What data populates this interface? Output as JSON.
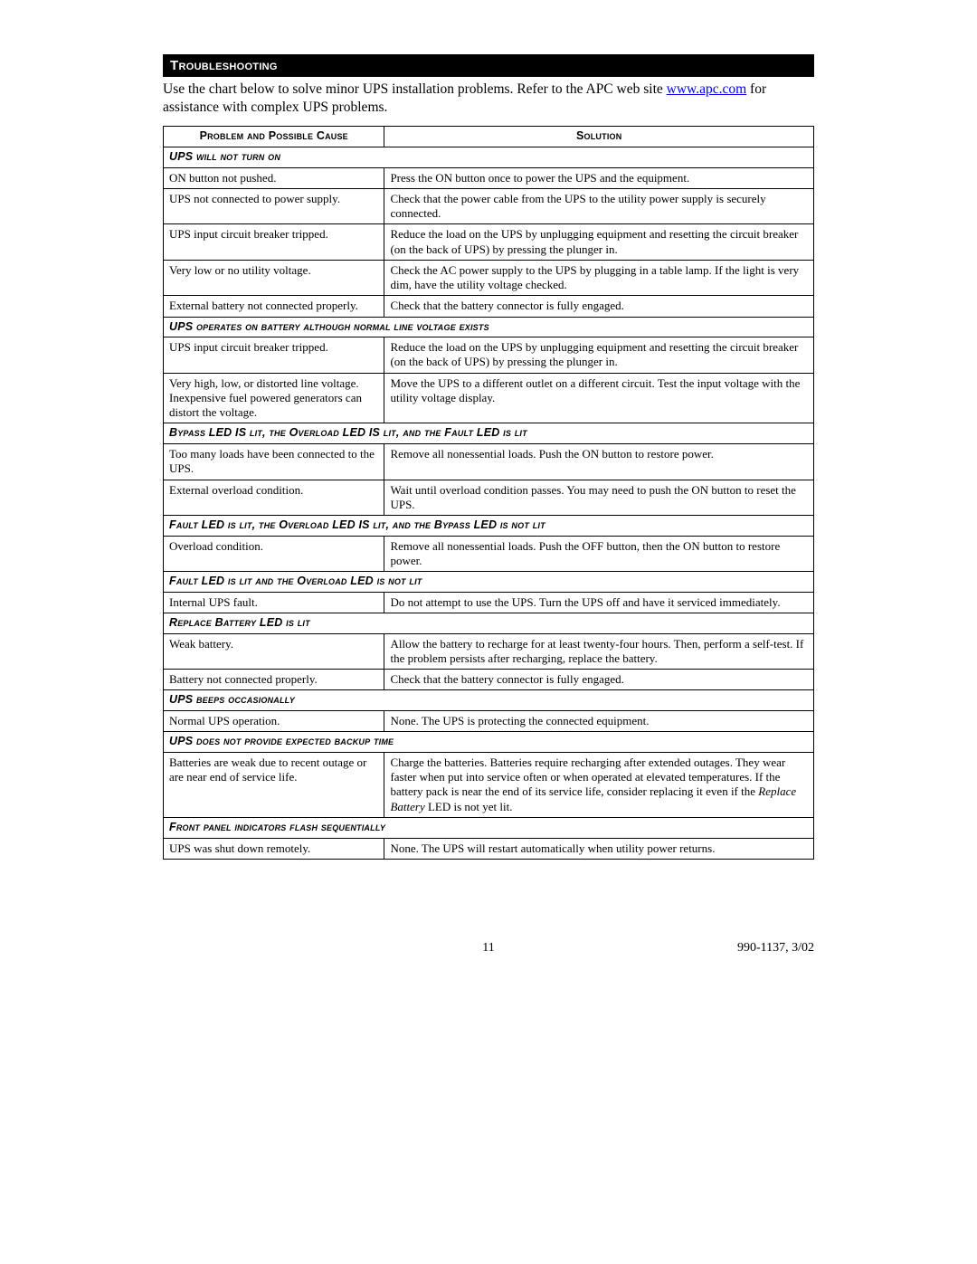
{
  "header": "Troubleshooting",
  "intro_before": "Use the chart below to solve minor UPS installation problems. Refer to the APC web site ",
  "intro_link": "www.apc.com",
  "intro_after": " for assistance with complex UPS problems.",
  "col_problem": "Problem and Possible Cause",
  "col_solution": "Solution",
  "sections": [
    {
      "title": "UPS will not turn on",
      "rows": [
        {
          "p": "ON button not pushed.",
          "s": "Press the ON button once to power the UPS and the equipment."
        },
        {
          "p": "UPS not connected to power supply.",
          "s": "Check that the power cable from the UPS to the utility power supply is securely connected."
        },
        {
          "p": "UPS input circuit breaker tripped.",
          "s": "Reduce the load on the UPS by unplugging equipment and resetting the circuit breaker (on the back of UPS) by pressing the plunger in."
        },
        {
          "p": "Very low or no utility voltage.",
          "s": "Check the AC power supply to the UPS by plugging in a table lamp. If the light is very dim, have the utility voltage checked."
        },
        {
          "p": "External battery not connected properly.",
          "s": "Check that the battery connector is fully engaged."
        }
      ]
    },
    {
      "title": "UPS operates on battery although normal line voltage exists",
      "rows": [
        {
          "p": "UPS input circuit breaker tripped.",
          "s": "Reduce the load on the UPS by unplugging equipment and resetting the circuit breaker (on the back of UPS) by pressing the plunger in."
        },
        {
          "p": "Very high, low, or distorted line voltage. Inexpensive fuel powered generators can distort the voltage.",
          "s": "Move the UPS to a different outlet on a different circuit. Test the input voltage with the utility voltage display."
        }
      ]
    },
    {
      "title": "Bypass LED IS lit, the Overload LED IS lit, and the Fault LED is lit",
      "rows": [
        {
          "p": "Too many loads have been connected to the UPS.",
          "s": "Remove all nonessential loads.  Push the ON button to restore power."
        },
        {
          "p": "External overload condition.",
          "s": "Wait until overload condition passes.  You may need to push the ON button to reset the UPS."
        }
      ]
    },
    {
      "title": "Fault LED is lit, the Overload LED IS lit, and the Bypass LED is not lit",
      "rows": [
        {
          "p": "Overload condition.",
          "s": "Remove all nonessential loads.  Push the OFF button, then the ON button to restore power."
        }
      ]
    },
    {
      "title": "Fault LED is lit and the Overload LED is not lit",
      "rows": [
        {
          "p": "Internal UPS fault.",
          "s": "Do not attempt to use the UPS. Turn the UPS off and have it serviced immediately."
        }
      ]
    },
    {
      "title": "Replace Battery LED is lit",
      "rows": [
        {
          "p": "Weak battery.",
          "s": "Allow the battery to recharge for at least twenty-four hours. Then, perform a self-test. If the problem persists after recharging, replace the battery."
        },
        {
          "p": "Battery not connected properly.",
          "s": "Check that the battery connector is fully engaged."
        }
      ]
    },
    {
      "title": "UPS beeps occasionally",
      "rows": [
        {
          "p": "Normal UPS operation.",
          "s": "None. The UPS is protecting the connected equipment."
        }
      ]
    },
    {
      "title": "UPS does not provide expected backup time",
      "rows": [
        {
          "p": "Batteries are weak due to recent outage or are near end of service life.",
          "s": "Charge the batteries. Batteries require recharging after extended outages. They wear faster when put into service often or when operated at elevated temperatures. If the battery pack is near the end of its service life, consider replacing it even if the Replace Battery LED is not yet lit.",
          "ital": "Replace Battery"
        }
      ]
    },
    {
      "title": "Front panel indicators flash sequentially",
      "rows": [
        {
          "p": "UPS was shut down remotely.",
          "s": "None. The UPS will restart automatically when utility power returns."
        }
      ]
    }
  ],
  "page_number": "11",
  "doc_id": "990-1137, 3/02"
}
